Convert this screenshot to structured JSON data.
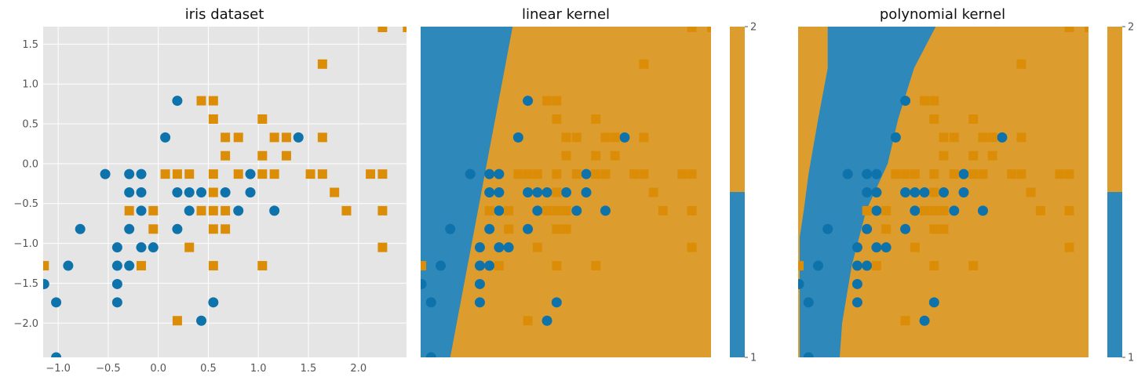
{
  "colors": {
    "class_1": "#0e72ab",
    "class_2": "#dc8d08",
    "region_1": "#2e88ba",
    "region_2": "#dd9d2e",
    "axes_bg": "#e5e5e5",
    "grid": "#ffffff",
    "tick_text": "#555555",
    "title_text": "#111111"
  },
  "chart_data": [
    {
      "type": "scatter",
      "title": "iris dataset",
      "xlabel": "",
      "ylabel": "",
      "xlim": [
        -1.15,
        2.48
      ],
      "ylim": [
        -2.43,
        1.72
      ],
      "grid": true,
      "x_ticks": [
        "−1.0",
        "−0.5",
        "0.0",
        "0.5",
        "1.0",
        "1.5",
        "2.0"
      ],
      "x_tick_values": [
        -1.0,
        -0.5,
        0.0,
        0.5,
        1.0,
        1.5,
        2.0
      ],
      "y_ticks": [
        "1.5",
        "1.0",
        "0.5",
        "0.0",
        "−0.5",
        "−1.0",
        "−1.5",
        "−2.0"
      ],
      "y_tick_values": [
        1.5,
        1.0,
        0.5,
        0.0,
        -0.5,
        -1.0,
        -1.5,
        -2.0
      ],
      "series": [
        {
          "marker": "circle",
          "color_key": "class_1",
          "points": [
            [
              0.19,
              0.79
            ],
            [
              0.07,
              0.33
            ],
            [
              1.4,
              0.33
            ],
            [
              -0.53,
              -0.13
            ],
            [
              -0.29,
              -0.13
            ],
            [
              -0.17,
              -0.13
            ],
            [
              0.92,
              -0.13
            ],
            [
              -0.29,
              -0.36
            ],
            [
              -0.17,
              -0.36
            ],
            [
              0.19,
              -0.36
            ],
            [
              0.31,
              -0.36
            ],
            [
              0.43,
              -0.36
            ],
            [
              0.67,
              -0.36
            ],
            [
              0.92,
              -0.36
            ],
            [
              -0.17,
              -0.59
            ],
            [
              0.31,
              -0.59
            ],
            [
              0.8,
              -0.59
            ],
            [
              1.16,
              -0.59
            ],
            [
              -0.78,
              -0.82
            ],
            [
              -0.29,
              -0.82
            ],
            [
              0.19,
              -0.82
            ],
            [
              -0.41,
              -1.05
            ],
            [
              -0.17,
              -1.05
            ],
            [
              -0.05,
              -1.05
            ],
            [
              -0.9,
              -1.28
            ],
            [
              -0.41,
              -1.28
            ],
            [
              -0.29,
              -1.28
            ],
            [
              -1.14,
              -1.51
            ],
            [
              -0.41,
              -1.51
            ],
            [
              -1.02,
              -1.74
            ],
            [
              -0.41,
              -1.74
            ],
            [
              0.55,
              -1.74
            ],
            [
              0.43,
              -1.97
            ],
            [
              -1.02,
              -2.43
            ]
          ]
        },
        {
          "marker": "square",
          "color_key": "class_2",
          "points": [
            [
              2.24,
              1.71
            ],
            [
              2.49,
              1.71
            ],
            [
              1.64,
              1.25
            ],
            [
              0.43,
              0.79
            ],
            [
              0.55,
              0.79
            ],
            [
              0.55,
              0.56
            ],
            [
              1.04,
              0.56
            ],
            [
              0.67,
              0.33
            ],
            [
              0.8,
              0.33
            ],
            [
              1.16,
              0.33
            ],
            [
              1.28,
              0.33
            ],
            [
              1.64,
              0.33
            ],
            [
              0.67,
              0.1
            ],
            [
              1.04,
              0.1
            ],
            [
              1.28,
              0.1
            ],
            [
              0.07,
              -0.13
            ],
            [
              0.19,
              -0.13
            ],
            [
              0.31,
              -0.13
            ],
            [
              0.55,
              -0.13
            ],
            [
              0.8,
              -0.13
            ],
            [
              1.04,
              -0.13
            ],
            [
              1.16,
              -0.13
            ],
            [
              1.52,
              -0.13
            ],
            [
              1.64,
              -0.13
            ],
            [
              2.12,
              -0.13
            ],
            [
              2.24,
              -0.13
            ],
            [
              0.55,
              -0.36
            ],
            [
              1.76,
              -0.36
            ],
            [
              -0.29,
              -0.59
            ],
            [
              -0.05,
              -0.59
            ],
            [
              0.43,
              -0.59
            ],
            [
              0.55,
              -0.59
            ],
            [
              0.67,
              -0.59
            ],
            [
              1.88,
              -0.59
            ],
            [
              2.24,
              -0.59
            ],
            [
              -0.05,
              -0.82
            ],
            [
              0.55,
              -0.82
            ],
            [
              0.67,
              -0.82
            ],
            [
              0.31,
              -1.05
            ],
            [
              2.24,
              -1.05
            ],
            [
              -1.14,
              -1.28
            ],
            [
              -0.17,
              -1.28
            ],
            [
              0.55,
              -1.28
            ],
            [
              1.04,
              -1.28
            ],
            [
              0.19,
              -1.97
            ]
          ]
        }
      ]
    },
    {
      "type": "heatmap",
      "title": "linear kernel",
      "xlim": [
        -1.15,
        2.48
      ],
      "ylim": [
        -2.43,
        1.72
      ],
      "boundary_x_at_top": 0.0,
      "boundary_x_at_bottom": -0.78,
      "overlay": "iris dataset points",
      "colorbar": {
        "ticks": [
          "1",
          "2"
        ],
        "tick_values": [
          1,
          2
        ],
        "range": [
          1,
          2
        ],
        "split": 1.5
      }
    },
    {
      "type": "heatmap",
      "title": "polynomial kernel",
      "xlim": [
        -1.15,
        2.48
      ],
      "ylim": [
        -2.43,
        1.72
      ],
      "left_boundary": [
        [
          1.72,
          -0.78
        ],
        [
          1.2,
          -0.78
        ],
        [
          0.56,
          -0.9
        ],
        [
          -0.13,
          -1.02
        ],
        [
          -0.59,
          -1.08
        ],
        [
          -0.92,
          -1.13
        ],
        [
          -2.43,
          -1.13
        ]
      ],
      "right_boundary": [
        [
          1.72,
          0.57
        ],
        [
          1.2,
          0.3
        ],
        [
          0.56,
          0.1
        ],
        [
          0.0,
          -0.03
        ],
        [
          -0.59,
          -0.3
        ],
        [
          -1.28,
          -0.48
        ],
        [
          -2.0,
          -0.6
        ],
        [
          -2.43,
          -0.63
        ]
      ],
      "overlay": "iris dataset points",
      "colorbar": {
        "ticks": [
          "1",
          "2"
        ],
        "tick_values": [
          1,
          2
        ],
        "range": [
          1,
          2
        ],
        "split": 1.5
      }
    }
  ]
}
